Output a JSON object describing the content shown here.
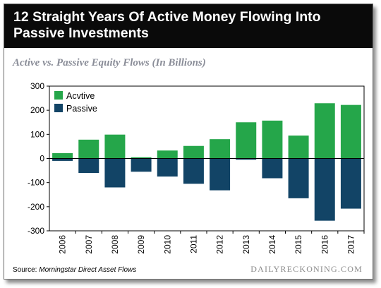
{
  "header": {
    "title": "12 Straight Years Of Active Money Flowing Into Passive Investments"
  },
  "subtitle": "Active vs. Passive Equity Flows (In Billions)",
  "footer": {
    "source_label": "Source:",
    "source_name": "Morningstar Direct Asset Flows",
    "credit": "DAILYRECKONING.COM"
  },
  "colors": {
    "active": "#25a64a",
    "passive": "#124466",
    "title_bg": "#0a0a0a"
  },
  "chart_data": {
    "type": "bar",
    "categories": [
      "2006",
      "2007",
      "2008",
      "2009",
      "2010",
      "2011",
      "2012",
      "2013",
      "2014",
      "2015",
      "2016",
      "2017"
    ],
    "series": [
      {
        "name": "Acvtive",
        "values": [
          22,
          78,
          99,
          5,
          33,
          52,
          80,
          150,
          157,
          95,
          229,
          222
        ]
      },
      {
        "name": "Passive",
        "values": [
          -10,
          -60,
          -120,
          -55,
          -75,
          -105,
          -132,
          -5,
          -82,
          -165,
          -258,
          -208
        ]
      }
    ],
    "ylim": [
      -300,
      300
    ],
    "yticks": [
      -300,
      -200,
      -100,
      0,
      100,
      200,
      300
    ],
    "legend": "top-left",
    "grid": false
  }
}
